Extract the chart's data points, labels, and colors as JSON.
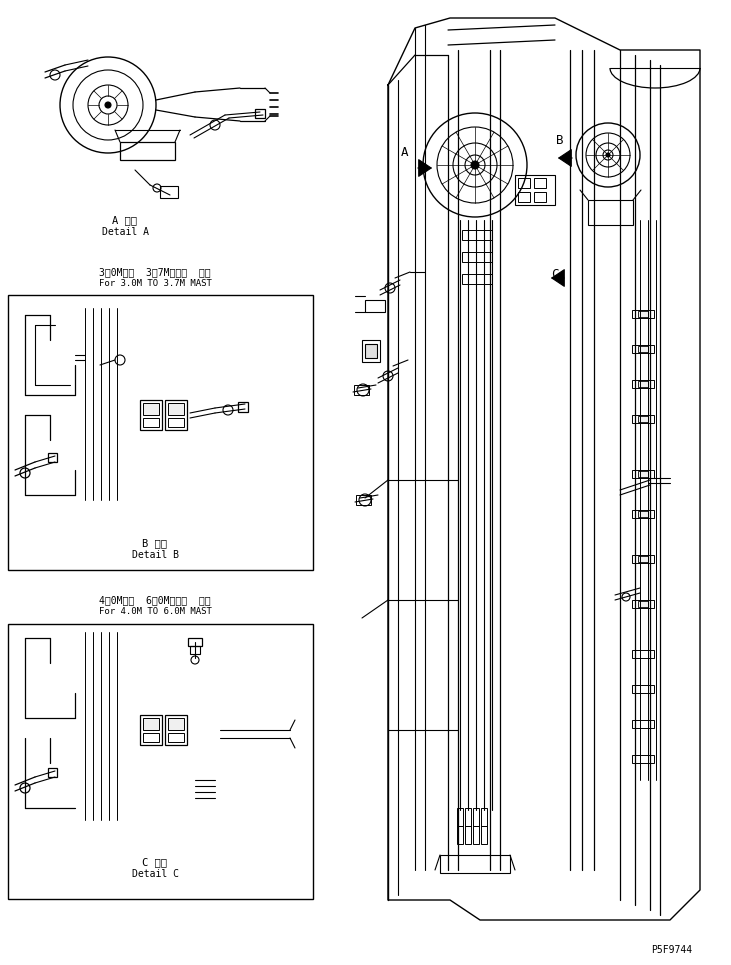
{
  "bg_color": "#ffffff",
  "line_color": "#000000",
  "fig_width": 7.31,
  "fig_height": 9.65,
  "dpi": 100,
  "part_number": "P5F9744",
  "detail_a_label": "A 詳細",
  "detail_a_sub": "Detail A",
  "detail_b_label": "B 詳細",
  "detail_b_sub": "Detail B",
  "detail_c_label": "C 詳細",
  "detail_c_sub": "Detail C",
  "label_3m": "3．0Mカラ  3．7Mマスト  ヨウ",
  "label_3m_en": "For 3.0M TO 3.7M MAST",
  "label_4m": "4．0Mカラ  6．0Mマスト  ヨウ",
  "label_4m_en": "For 4.0M TO 6.0M MAST"
}
